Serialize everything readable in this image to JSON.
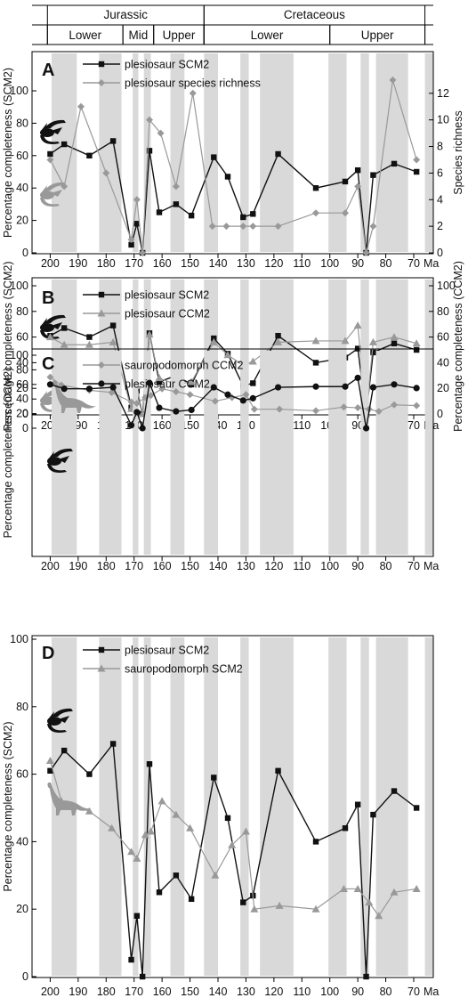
{
  "timescale": {
    "periods": [
      {
        "label": "Jurassic",
        "start": 201,
        "end": 145
      },
      {
        "label": "Cretaceous",
        "start": 145,
        "end": 66
      }
    ],
    "epochs": [
      {
        "label": "Lower",
        "start": 201,
        "end": 174
      },
      {
        "label": "Mid",
        "start": 174,
        "end": 163
      },
      {
        "label": "Upper",
        "start": 163,
        "end": 145
      },
      {
        "label": "Lower",
        "start": 145,
        "end": 100
      },
      {
        "label": "Upper",
        "start": 100,
        "end": 66
      }
    ]
  },
  "x_axis": {
    "unit_label": "Ma",
    "ticks": [
      200,
      190,
      180,
      170,
      160,
      150,
      140,
      130,
      120,
      110,
      100,
      90,
      80,
      70
    ],
    "range": [
      203,
      63
    ]
  },
  "stage_bands": [
    [
      199.5,
      190.5
    ],
    [
      182.5,
      174.5
    ],
    [
      170.5,
      168.5
    ],
    [
      166.5,
      164
    ],
    [
      157,
      152
    ],
    [
      145,
      140
    ],
    [
      132,
      129
    ],
    [
      125,
      113
    ],
    [
      100.5,
      94
    ],
    [
      89,
      86
    ],
    [
      83.5,
      72
    ],
    [
      66,
      63
    ]
  ],
  "colors": {
    "black_series": "#111111",
    "grey_series": "#999999",
    "band": "#d9d9d9"
  },
  "chart_data": [
    {
      "panel": "A",
      "type": "line",
      "ylabel": "Percentage completeness (SCM2)",
      "ylim": [
        0,
        100
      ],
      "yticks": [
        0,
        20,
        40,
        60,
        80,
        100
      ],
      "right_axis": {
        "label": "Species richness",
        "ylim": [
          0,
          15
        ],
        "ticks": [
          0,
          2,
          4,
          6,
          8,
          10,
          12
        ]
      },
      "legend": "top-center",
      "silhouettes": [
        "plesiosaur-icon",
        "plesiosaur-icon"
      ],
      "series": [
        {
          "name": "plesiosaur SCM2",
          "marker": "square",
          "color": "#111111",
          "axis": "left",
          "x": [
            200,
            195,
            186,
            177.5,
            171,
            169,
            167,
            164.5,
            161,
            155,
            149.5,
            141.5,
            136.5,
            131,
            127.5,
            118.5,
            105,
            94.5,
            90,
            87,
            84.5,
            77,
            69
          ],
          "y": [
            61,
            67,
            60,
            69,
            5,
            18,
            0,
            63,
            25,
            30,
            23,
            59,
            47,
            22,
            24,
            61,
            40,
            44,
            51,
            0,
            48,
            55,
            50
          ]
        },
        {
          "name": "plesiosaur species richness",
          "marker": "diamond",
          "color": "#999999",
          "axis": "right",
          "x": [
            200,
            195,
            189,
            180,
            171,
            169,
            167,
            164.5,
            160.5,
            155,
            149,
            142,
            137,
            131,
            127.5,
            118.5,
            105,
            94.5,
            90,
            87,
            84.5,
            77.5,
            69
          ],
          "y": [
            7,
            5,
            11,
            6,
            1,
            4,
            0,
            10,
            9,
            5,
            12,
            2,
            2,
            2,
            2,
            2,
            3,
            3,
            5,
            0,
            2,
            13,
            7
          ]
        }
      ]
    },
    {
      "panel": "B",
      "type": "line",
      "ylabel": "Percentage completeness (SCM2)",
      "ylim": [
        0,
        100
      ],
      "yticks": [
        0,
        20,
        40,
        60,
        80,
        100
      ],
      "right_axis": {
        "label": "Percentage completeness (CCM2)",
        "ylim": [
          0,
          100
        ],
        "ticks": [
          0,
          20,
          40,
          60,
          80,
          100
        ]
      },
      "legend": "top-center",
      "silhouettes": [
        "plesiosaur-icon",
        "plesiosaur-icon"
      ],
      "series": [
        {
          "name": "plesiosaur SCM2",
          "marker": "square",
          "color": "#111111",
          "axis": "left",
          "x": [
            200,
            195,
            186,
            177.5,
            171,
            169,
            167,
            164.5,
            161,
            155,
            149.5,
            141.5,
            136.5,
            131,
            127.5,
            118.5,
            105,
            94.5,
            90,
            87,
            84.5,
            77,
            69
          ],
          "y": [
            61,
            67,
            60,
            69,
            5,
            18,
            0,
            63,
            25,
            30,
            23,
            59,
            47,
            22,
            24,
            61,
            40,
            44,
            51,
            0,
            48,
            55,
            50
          ]
        },
        {
          "name": "plesiosaur CCM2",
          "marker": "triangle",
          "color": "#999999",
          "axis": "right",
          "x": [
            200,
            195,
            186,
            177.5,
            171,
            169,
            167,
            164.5,
            161,
            155,
            149.5,
            141.5,
            136.5,
            131,
            127.5,
            118.5,
            105,
            94.5,
            90,
            87,
            84.5,
            77,
            69
          ],
          "y": [
            60,
            54,
            54,
            56,
            4,
            22,
            0,
            62,
            28,
            23,
            25,
            56,
            46,
            38,
            41,
            56,
            57,
            57,
            69,
            0,
            56,
            60,
            55
          ]
        }
      ]
    },
    {
      "panel": "C",
      "type": "line",
      "ylabel": "Percentage completeness (CCM2)",
      "ylim": [
        0,
        100
      ],
      "yticks": [
        0,
        20,
        40,
        60,
        80,
        100
      ],
      "legend": "top-center",
      "silhouettes": [
        "sauropodomorph-icon",
        "plesiosaur-icon"
      ],
      "series": [
        {
          "name": "sauropodomorph CCM2",
          "marker": "diamond",
          "color": "#999999",
          "x": [
            200,
            196,
            186,
            178,
            171,
            169,
            166,
            164,
            160,
            155,
            150,
            141,
            135,
            130,
            127,
            118,
            105,
            95,
            90,
            86,
            82.5,
            77,
            69
          ],
          "y": [
            70,
            59,
            52,
            49,
            36,
            34,
            42,
            45,
            54,
            50,
            46,
            37,
            42,
            46,
            26,
            26,
            24,
            29,
            28,
            26,
            23,
            32,
            31
          ]
        },
        {
          "name": "plesiosaur CCM2",
          "marker": "circle",
          "color": "#111111",
          "x": [
            200,
            195,
            186,
            177.5,
            171,
            169,
            167,
            164.5,
            161,
            155,
            149.5,
            141.5,
            136.5,
            131,
            127.5,
            118.5,
            105,
            94.5,
            90,
            87,
            84.5,
            77,
            69
          ],
          "y": [
            60,
            54,
            54,
            56,
            4,
            22,
            0,
            62,
            28,
            23,
            25,
            56,
            46,
            38,
            41,
            56,
            57,
            57,
            69,
            0,
            56,
            60,
            55
          ]
        }
      ]
    },
    {
      "panel": "D",
      "type": "line",
      "ylabel": "Percentage completeness (SCM2)",
      "ylim": [
        0,
        100
      ],
      "yticks": [
        0,
        20,
        40,
        60,
        80,
        100
      ],
      "legend": "top-center",
      "silhouettes": [
        "plesiosaur-icon",
        "sauropodomorph-icon"
      ],
      "series": [
        {
          "name": "plesiosaur SCM2",
          "marker": "square",
          "color": "#111111",
          "x": [
            200,
            195,
            186,
            177.5,
            171,
            169,
            167,
            164.5,
            161,
            155,
            149.5,
            141.5,
            136.5,
            131,
            127.5,
            118.5,
            105,
            94.5,
            90,
            87,
            84.5,
            77,
            69
          ],
          "y": [
            61,
            67,
            60,
            69,
            5,
            18,
            0,
            63,
            25,
            30,
            23,
            59,
            47,
            22,
            24,
            61,
            40,
            44,
            51,
            0,
            48,
            55,
            50
          ]
        },
        {
          "name": "sauropodomorph SCM2",
          "marker": "triangle",
          "color": "#999999",
          "x": [
            200,
            196,
            186,
            178,
            171,
            169,
            166,
            164,
            160,
            155,
            150,
            141,
            135,
            130,
            127,
            118,
            105,
            95,
            90,
            86,
            82.5,
            77,
            69
          ],
          "y": [
            64,
            52,
            49,
            44,
            37,
            35,
            42,
            43,
            52,
            48,
            44,
            30,
            39,
            43,
            20,
            21,
            20,
            26,
            26,
            22,
            18,
            25,
            26
          ]
        }
      ]
    }
  ]
}
